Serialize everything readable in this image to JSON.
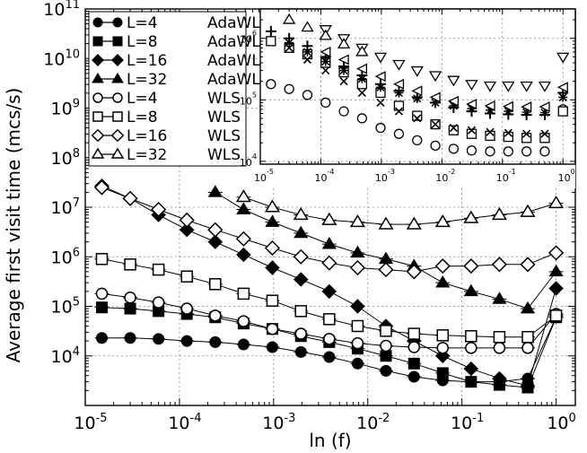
{
  "chart_data": {
    "type": "line",
    "xscale": "log",
    "yscale": "log",
    "xlabel": "ln (f)",
    "ylabel": "Average first visit time (mcs/s)",
    "xlim": [
      1e-05,
      1.6
    ],
    "ylim": [
      1000.0,
      100000000000.0
    ],
    "x_ticks": [
      "10",
      "10",
      "10",
      "10",
      "10",
      "10"
    ],
    "x_tick_exps": [
      "-5",
      "-4",
      "-3",
      "-2",
      "-1",
      "0"
    ],
    "y_ticks": [
      "10",
      "10",
      "10",
      "10",
      "10",
      "10",
      "10",
      "10"
    ],
    "y_tick_exps": [
      "4",
      "5",
      "6",
      "7",
      "8",
      "9",
      "10",
      "11"
    ],
    "series": [
      {
        "name": "L=4",
        "method": "AdaWL",
        "marker": "circle",
        "filled": true,
        "x": [
          1.5e-05,
          3e-05,
          6e-05,
          0.00012,
          0.00024,
          0.00048,
          0.00097,
          0.00195,
          0.0039,
          0.0078,
          0.0156,
          0.031,
          0.0625,
          0.125,
          0.25,
          0.5,
          1.0
        ],
        "y": [
          23000,
          23000,
          22000,
          20000,
          19000,
          17000,
          15000,
          12000,
          9500,
          7000,
          5000,
          3800,
          3200,
          3000,
          3000,
          3500,
          60000
        ]
      },
      {
        "name": "L=8",
        "method": "AdaWL",
        "marker": "square",
        "filled": true,
        "x": [
          1.5e-05,
          3e-05,
          6e-05,
          0.00012,
          0.00024,
          0.00048,
          0.00097,
          0.00195,
          0.0039,
          0.0078,
          0.0156,
          0.031,
          0.0625,
          0.125,
          0.25,
          0.5,
          1.0
        ],
        "y": [
          95000,
          90000,
          80000,
          70000,
          60000,
          45000,
          35000,
          25000,
          19000,
          14000,
          10000,
          7000,
          4500,
          3000,
          2600,
          2300,
          60000
        ]
      },
      {
        "name": "L=16",
        "method": "AdaWL",
        "marker": "diamond",
        "filled": true,
        "x": [
          1.5e-05,
          3e-05,
          6e-05,
          0.00012,
          0.00024,
          0.00048,
          0.00097,
          0.00195,
          0.0039,
          0.0078,
          0.0156,
          0.031,
          0.0625,
          0.125,
          0.25,
          0.5,
          1.0
        ],
        "y": [
          27000000,
          15000000,
          7000000,
          3500000,
          2000000,
          1100000,
          600000,
          350000,
          200000,
          100000,
          40000,
          20000,
          10000,
          5500,
          3500,
          2500,
          230000
        ]
      },
      {
        "name": "L=32",
        "method": "AdaWL",
        "marker": "triangle",
        "filled": true,
        "x": [
          0.00024,
          0.00048,
          0.00097,
          0.00195,
          0.0039,
          0.0078,
          0.0156,
          0.031,
          0.0625,
          0.125,
          0.25,
          0.5,
          1.0
        ],
        "y": [
          20000000,
          9000000,
          5000000,
          3000000,
          1800000,
          1200000,
          900000,
          650000,
          300000,
          200000,
          140000,
          90000,
          500000
        ]
      },
      {
        "name": "L=4",
        "method": "WLS",
        "marker": "circle",
        "filled": false,
        "x": [
          1.5e-05,
          3e-05,
          6e-05,
          0.00012,
          0.00024,
          0.00048,
          0.00097,
          0.00195,
          0.0039,
          0.0078,
          0.0156,
          0.031,
          0.0625,
          0.125,
          0.25,
          0.5,
          1.0
        ],
        "y": [
          180000,
          150000,
          120000,
          90000,
          65000,
          50000,
          35000,
          28000,
          22000,
          18000,
          16000,
          15000,
          14500,
          14500,
          14500,
          14500,
          70000
        ]
      },
      {
        "name": "L=8",
        "method": "WLS",
        "marker": "square",
        "filled": false,
        "x": [
          1.5e-05,
          3e-05,
          6e-05,
          0.00012,
          0.00024,
          0.00048,
          0.00097,
          0.00195,
          0.0039,
          0.0078,
          0.0156,
          0.031,
          0.0625,
          0.125,
          0.25,
          0.5,
          1.0
        ],
        "y": [
          900000,
          700000,
          550000,
          400000,
          280000,
          180000,
          130000,
          80000,
          55000,
          40000,
          32000,
          28000,
          26000,
          25000,
          24000,
          24000,
          65000
        ]
      },
      {
        "name": "L=16",
        "method": "WLS",
        "marker": "diamond",
        "filled": false,
        "x": [
          1.5e-05,
          3e-05,
          6e-05,
          0.00012,
          0.00024,
          0.00048,
          0.00097,
          0.00195,
          0.0039,
          0.0078,
          0.0156,
          0.031,
          0.0625,
          0.125,
          0.25,
          0.5,
          1.0
        ],
        "y": [
          25000000,
          15000000,
          9000000,
          5500000,
          3500000,
          2300000,
          1500000,
          1000000,
          750000,
          600000,
          550000,
          500000,
          650000,
          650000,
          700000,
          700000,
          1200000
        ]
      },
      {
        "name": "L=32",
        "method": "WLS",
        "marker": "triangle",
        "filled": false,
        "x": [
          0.00048,
          0.00097,
          0.00195,
          0.0039,
          0.0078,
          0.0156,
          0.031,
          0.0625,
          0.125,
          0.25,
          0.5,
          1.0
        ],
        "y": [
          16000000,
          10000000,
          7000000,
          5500000,
          5000000,
          4500000,
          4500000,
          5000000,
          6000000,
          7000000,
          8000000,
          12000000
        ]
      }
    ],
    "legend": {
      "placement": "top-left"
    },
    "grid": true,
    "inset": {
      "xscale": "log",
      "yscale": "log",
      "xlim": [
        1e-05,
        1.6
      ],
      "ylim": [
        9000,
        3000000
      ],
      "x_ticks": [
        "10",
        "10",
        "10",
        "10",
        "10",
        "10"
      ],
      "x_tick_exps": [
        "-5",
        "-4",
        "-3",
        "-2",
        "-1",
        "0"
      ],
      "y_ticks": [
        "10",
        "10",
        "10"
      ],
      "y_tick_exps": [
        "4",
        "5",
        "6"
      ],
      "series": [
        {
          "name": "WLS L=4",
          "marker": "circle-open",
          "x": [
            1.5e-05,
            3e-05,
            6e-05,
            0.00012,
            0.00024,
            0.00048,
            0.00097,
            0.00195,
            0.0039,
            0.0078,
            0.0156,
            0.031,
            0.0625,
            0.125,
            0.25,
            0.5,
            1.0
          ],
          "y": [
            180000,
            150000,
            120000,
            90000,
            65000,
            50000,
            35000,
            28000,
            22000,
            18000,
            16000,
            15000,
            14500,
            14500,
            14500,
            14500,
            70000
          ]
        },
        {
          "name": "WLS L=8",
          "marker": "square-open",
          "x": [
            1.5e-05,
            3e-05,
            6e-05,
            0.00012,
            0.00024,
            0.00048,
            0.00097,
            0.00195,
            0.0039,
            0.0078,
            0.0156,
            0.031,
            0.0625,
            0.125,
            0.25,
            0.5,
            1.0
          ],
          "y": [
            900000,
            700000,
            550000,
            400000,
            280000,
            180000,
            130000,
            80000,
            55000,
            40000,
            32000,
            28000,
            26000,
            25000,
            24000,
            24000,
            65000
          ]
        },
        {
          "name": "cross",
          "marker": "x",
          "x": [
            3e-05,
            6e-05,
            0.00012,
            0.00024,
            0.00048,
            0.00097,
            0.00195,
            0.0039,
            0.0078,
            0.0156,
            0.031,
            0.0625,
            0.125,
            0.25,
            0.5,
            1.0
          ],
          "y": [
            700000,
            450000,
            300000,
            200000,
            130000,
            90000,
            65000,
            50000,
            40000,
            35000,
            32000,
            30000,
            29000,
            28000,
            28000,
            110000
          ]
        },
        {
          "name": "plus",
          "marker": "plus",
          "x": [
            1.5e-05,
            3e-05,
            6e-05,
            0.00012,
            0.00024,
            0.00048,
            0.00097,
            0.00195,
            0.0039,
            0.0078,
            0.0156,
            0.031,
            0.0625,
            0.125,
            0.25,
            0.5,
            1.0
          ],
          "y": [
            1300000,
            1000000,
            750000,
            500000,
            350000,
            250000,
            180000,
            140000,
            110000,
            90000,
            75000,
            65000,
            60000,
            58000,
            57000,
            57000,
            130000
          ]
        },
        {
          "name": "star",
          "marker": "star",
          "x": [
            3e-05,
            6e-05,
            0.00012,
            0.00024,
            0.00048,
            0.00097,
            0.00195,
            0.0039,
            0.0078,
            0.0156,
            0.031,
            0.0625,
            0.125,
            0.25,
            0.5,
            1.0
          ],
          "y": [
            850000,
            600000,
            420000,
            300000,
            220000,
            160000,
            130000,
            105000,
            90000,
            80000,
            72000,
            68000,
            65000,
            63000,
            62000,
            110000
          ]
        },
        {
          "name": "triangle-left",
          "marker": "triangle-left",
          "x": [
            0.00012,
            0.00024,
            0.00048,
            0.00097,
            0.00195,
            0.0039,
            0.0078,
            0.0156,
            0.031,
            0.0625,
            0.125,
            0.25,
            0.5,
            1.0
          ],
          "y": [
            600000,
            450000,
            320000,
            240000,
            180000,
            140000,
            110000,
            95000,
            85000,
            80000,
            78000,
            77000,
            77000,
            160000
          ]
        },
        {
          "name": "triangle-down",
          "marker": "triangle-down",
          "x": [
            0.00012,
            0.00024,
            0.00048,
            0.00097,
            0.00195,
            0.0039,
            0.0078,
            0.0156,
            0.031,
            0.0625,
            0.125,
            0.25,
            0.5,
            1.0
          ],
          "y": [
            1400000,
            1000000,
            700000,
            500000,
            380000,
            300000,
            250000,
            210000,
            180000,
            170000,
            170000,
            170000,
            170000,
            500000
          ]
        },
        {
          "name": "triangle-up",
          "marker": "triangle-up-open",
          "x": [
            3e-05,
            6e-05,
            0.00012,
            0.00024,
            0.00048
          ],
          "y": [
            2000000,
            1500000,
            1100000,
            800000,
            600000
          ]
        }
      ]
    }
  }
}
